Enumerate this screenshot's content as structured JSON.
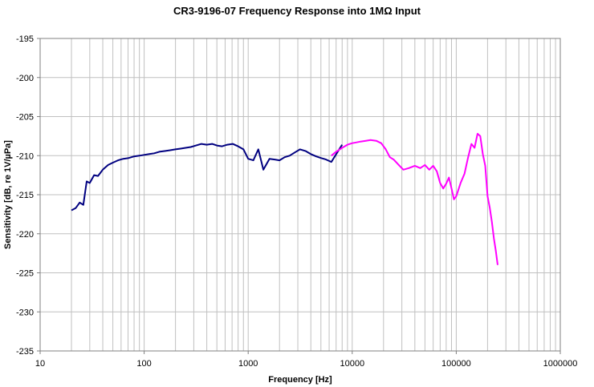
{
  "colors": {
    "series_low": "#000080",
    "series_high": "#ff00ff",
    "grid": "#c0c0c0"
  },
  "chart_data": {
    "type": "line",
    "title": "CR3-9196-07 Frequency Response into 1MΩ Input",
    "xlabel": "Frequency [Hz]",
    "ylabel": "Sensitivity [dB, re 1V/µPa]",
    "x_scale": "log",
    "xlim": [
      10,
      1000000
    ],
    "ylim": [
      -235,
      -195
    ],
    "x_ticks": [
      "10",
      "100",
      "1000",
      "10000",
      "100000",
      "1000000"
    ],
    "y_ticks": [
      "-195",
      "-200",
      "-205",
      "-210",
      "-215",
      "-220",
      "-225",
      "-230",
      "-235"
    ],
    "grid": true,
    "legend": "none",
    "series": [
      {
        "color": "#000080",
        "x": [
          20,
          22,
          24,
          26,
          28,
          30,
          33,
          36,
          40,
          45,
          50,
          56,
          63,
          71,
          80,
          90,
          100,
          112,
          125,
          140,
          160,
          180,
          200,
          224,
          250,
          280,
          315,
          355,
          400,
          450,
          500,
          560,
          630,
          710,
          800,
          900,
          1000,
          1120,
          1250,
          1400,
          1600,
          1800,
          2000,
          2240,
          2500,
          2800,
          3150,
          3550,
          4000,
          4500,
          5000,
          5600,
          6300,
          7100,
          8000
        ],
        "y": [
          -217,
          -216.7,
          -216,
          -216.3,
          -213.3,
          -213.5,
          -212.5,
          -212.6,
          -211.8,
          -211.2,
          -210.9,
          -210.6,
          -210.4,
          -210.3,
          -210.1,
          -210,
          -209.9,
          -209.8,
          -209.7,
          -209.5,
          -209.4,
          -209.3,
          -209.2,
          -209.1,
          -209,
          -208.9,
          -208.7,
          -208.5,
          -208.6,
          -208.5,
          -208.7,
          -208.8,
          -208.6,
          -208.5,
          -208.8,
          -209.2,
          -210.4,
          -210.6,
          -209.2,
          -211.8,
          -210.4,
          -210.5,
          -210.6,
          -210.2,
          -210,
          -209.6,
          -209.2,
          -209.4,
          -209.8,
          -210.1,
          -210.3,
          -210.5,
          -210.8,
          -209.7,
          -208.6
        ]
      },
      {
        "color": "#ff00ff",
        "x": [
          6300,
          7000,
          8000,
          9000,
          10000,
          11000,
          12000,
          13500,
          15000,
          17000,
          19000,
          21000,
          23000,
          25000,
          28000,
          31000,
          35000,
          40000,
          45000,
          50000,
          55000,
          60000,
          65000,
          70000,
          75000,
          80000,
          85000,
          90000,
          95000,
          100000,
          110000,
          120000,
          130000,
          140000,
          150000,
          160000,
          170000,
          180000,
          190000,
          200000,
          210000,
          220000,
          230000,
          240000,
          250000
        ],
        "y": [
          -210,
          -209.5,
          -209,
          -208.6,
          -208.4,
          -208.3,
          -208.2,
          -208.1,
          -208,
          -208.1,
          -208.4,
          -209.2,
          -210.2,
          -210.5,
          -211.2,
          -211.8,
          -211.6,
          -211.3,
          -211.6,
          -211.2,
          -211.8,
          -211.3,
          -212,
          -213.5,
          -214.2,
          -213.6,
          -212.8,
          -214.2,
          -215.6,
          -215.2,
          -213.5,
          -212.3,
          -210.2,
          -208.5,
          -209,
          -207.2,
          -207.5,
          -209.8,
          -211.3,
          -215.2,
          -216.7,
          -218.5,
          -220.6,
          -222.2,
          -224
        ]
      }
    ]
  }
}
